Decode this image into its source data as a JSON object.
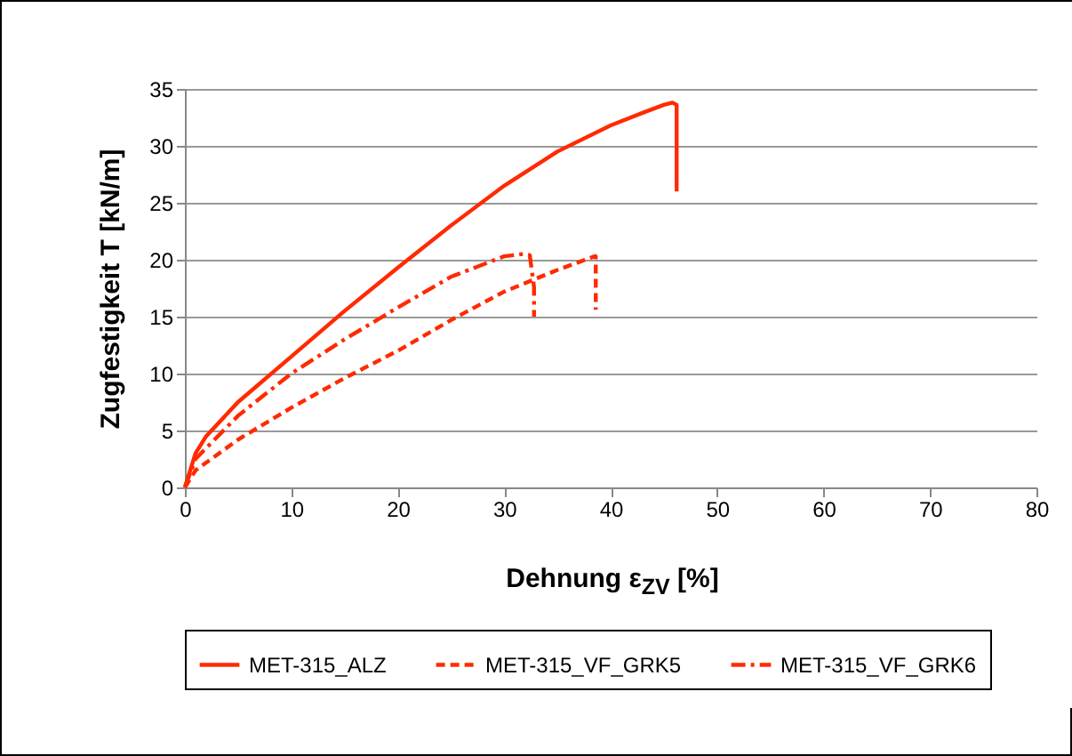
{
  "chart_data": {
    "type": "line",
    "xlabel": "Dehnung ε$_{ZV}$ [%]",
    "ylabel": "Zugfestigkeit T [kN/m]",
    "xlim": [
      0,
      80
    ],
    "xticks": [
      0,
      10,
      20,
      30,
      40,
      50,
      60,
      70,
      80
    ],
    "ylim": [
      0,
      35
    ],
    "yticks": [
      0,
      5,
      10,
      15,
      20,
      25,
      30,
      35
    ],
    "grid": "y",
    "legend": "bottom",
    "marker": "none",
    "series": [
      {
        "name": "MET-315_ALZ",
        "color": "#ff2a00",
        "line_style": "solid",
        "x": [
          0,
          1,
          2,
          5,
          10,
          15,
          20,
          25,
          30,
          35,
          40,
          43,
          45,
          45.8,
          46.2,
          46.2
        ],
        "values": [
          0,
          3,
          4.5,
          7.5,
          11.5,
          15.5,
          19.3,
          23,
          26.5,
          29.5,
          31.8,
          32.9,
          33.6,
          33.8,
          33.6,
          26
        ]
      },
      {
        "name": "MET-315_VF_GRK5",
        "color": "#ff2a00",
        "line_style": "dashed",
        "x": [
          0,
          1,
          5,
          10,
          15,
          20,
          25,
          30,
          35,
          38.5,
          38.6,
          38.6
        ],
        "values": [
          0,
          1.5,
          4.2,
          7,
          9.6,
          12,
          14.7,
          17.2,
          19.1,
          20.3,
          20.3,
          15.6
        ]
      },
      {
        "name": "MET-315_VF_GRK6",
        "color": "#ff2a00",
        "line_style": "dash-dot",
        "x": [
          0,
          1,
          5,
          10,
          15,
          20,
          25,
          30,
          31.8,
          32.4,
          32.8,
          32.8
        ],
        "values": [
          0,
          2.5,
          6.3,
          10,
          13,
          15.8,
          18.5,
          20.3,
          20.5,
          20.4,
          17.6,
          15
        ]
      }
    ]
  }
}
